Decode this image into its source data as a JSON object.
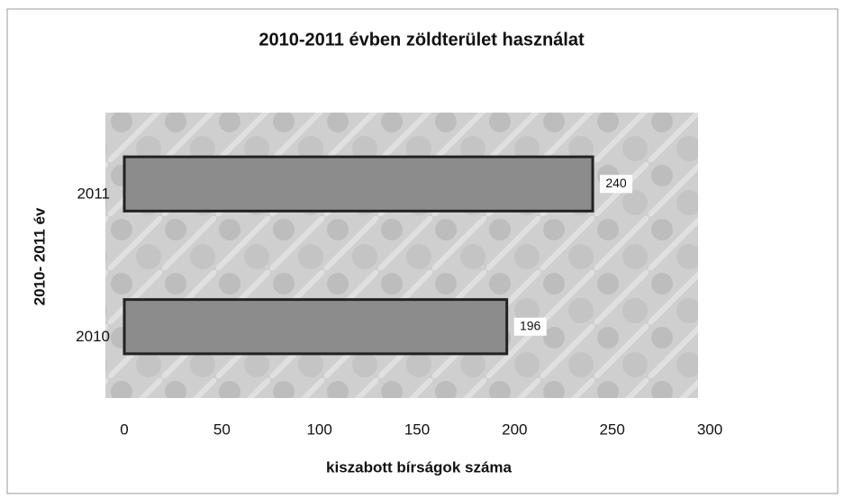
{
  "chart_data": {
    "type": "bar",
    "orientation": "horizontal",
    "title": "2010-2011 évben  zöldterület használat",
    "x_label": "kiszabott bírságok száma",
    "y_label": "2010- 2011 év",
    "categories": [
      "2010",
      "2011"
    ],
    "values": [
      196,
      240
    ],
    "color": "#8c8c8c",
    "xlim": [
      0,
      300
    ],
    "xticks": [
      0,
      50,
      100,
      150,
      200,
      250,
      300
    ]
  }
}
